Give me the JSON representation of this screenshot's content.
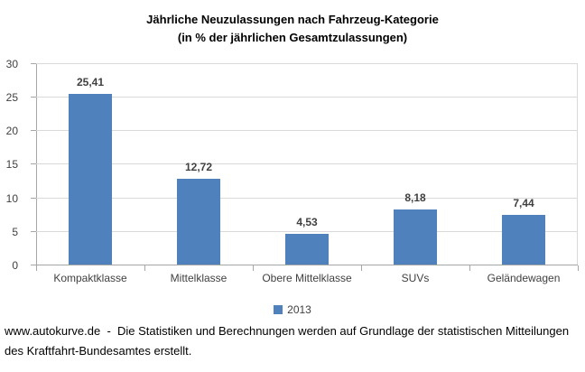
{
  "chart_data": {
    "type": "bar",
    "title": "Jährliche Neuzulassungen nach Fahrzeug-Kategorie",
    "subtitle": "(in % der jährlichen Gesamtzulassungen)",
    "categories": [
      "Kompaktklasse",
      "Mittelklasse",
      "Obere Mittelklasse",
      "SUVs",
      "Geländewagen"
    ],
    "values": [
      25.41,
      12.72,
      4.53,
      8.18,
      7.44
    ],
    "value_labels": [
      "25,41",
      "12,72",
      "4,53",
      "8,18",
      "7,44"
    ],
    "xlabel": "",
    "ylabel": "",
    "ylim": [
      0,
      30
    ],
    "yticks": [
      0,
      5,
      10,
      15,
      20,
      25,
      30
    ],
    "grid": true,
    "bar_color": "#4F81BD",
    "legend": {
      "position": "bottom",
      "entries": [
        {
          "label": "2013",
          "color": "#4F81BD"
        }
      ]
    }
  },
  "footer": {
    "text": "www.autokurve.de  -  Die Statistiken und Berechnungen werden auf Grundlage der statistischen Mitteilungen\ndes Kraftfahrt-Bundesamtes erstellt."
  },
  "colors": {
    "bar": "#4F81BD",
    "gridline": "#D9D9D9",
    "axis": "#A6A6A6",
    "label_text": "#404040",
    "title_text": "#000000"
  }
}
